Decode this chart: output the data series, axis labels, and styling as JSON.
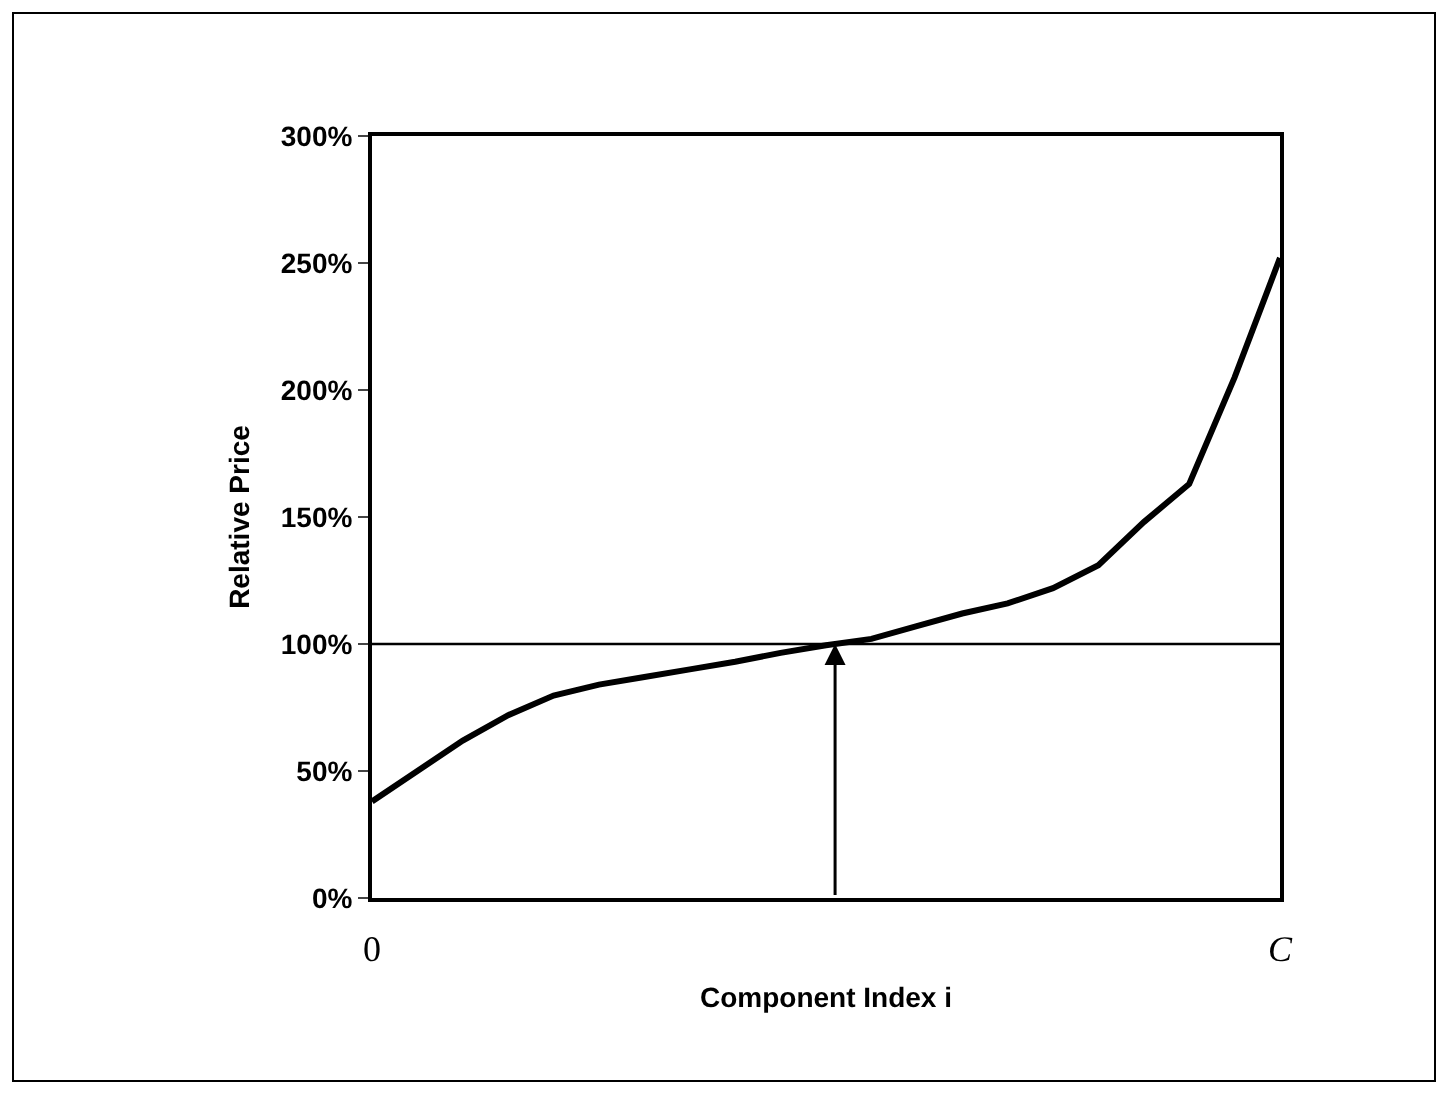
{
  "chart_data": {
    "type": "line",
    "xlabel": "Component Index i",
    "ylabel": "Relative Price",
    "categories": [
      "0",
      null,
      null,
      null,
      null,
      null,
      null,
      null,
      null,
      null,
      null,
      null,
      null,
      null,
      null,
      null,
      null,
      null,
      null,
      null,
      "C"
    ],
    "series": [
      {
        "color": "#000000",
        "values": [
          38,
          50,
          62,
          72,
          79.7,
          84,
          87,
          90,
          93,
          96.5,
          99.5,
          102,
          107,
          112,
          116,
          122,
          131,
          148,
          163,
          205,
          252
        ]
      }
    ],
    "ylim": [
      0,
      300
    ],
    "yticks": [
      {
        "value": 0,
        "label": "0%"
      },
      {
        "value": 50,
        "label": "50%"
      },
      {
        "value": 100,
        "label": "100%"
      },
      {
        "value": 150,
        "label": "150%"
      },
      {
        "value": 200,
        "label": "200%"
      },
      {
        "value": 250,
        "label": "250%"
      },
      {
        "value": 300,
        "label": "300%"
      }
    ],
    "ref_lines": [
      {
        "axis": "y",
        "value": 100,
        "color": "#000000"
      }
    ],
    "grid": false,
    "marker": "none",
    "line_style": "solid"
  }
}
